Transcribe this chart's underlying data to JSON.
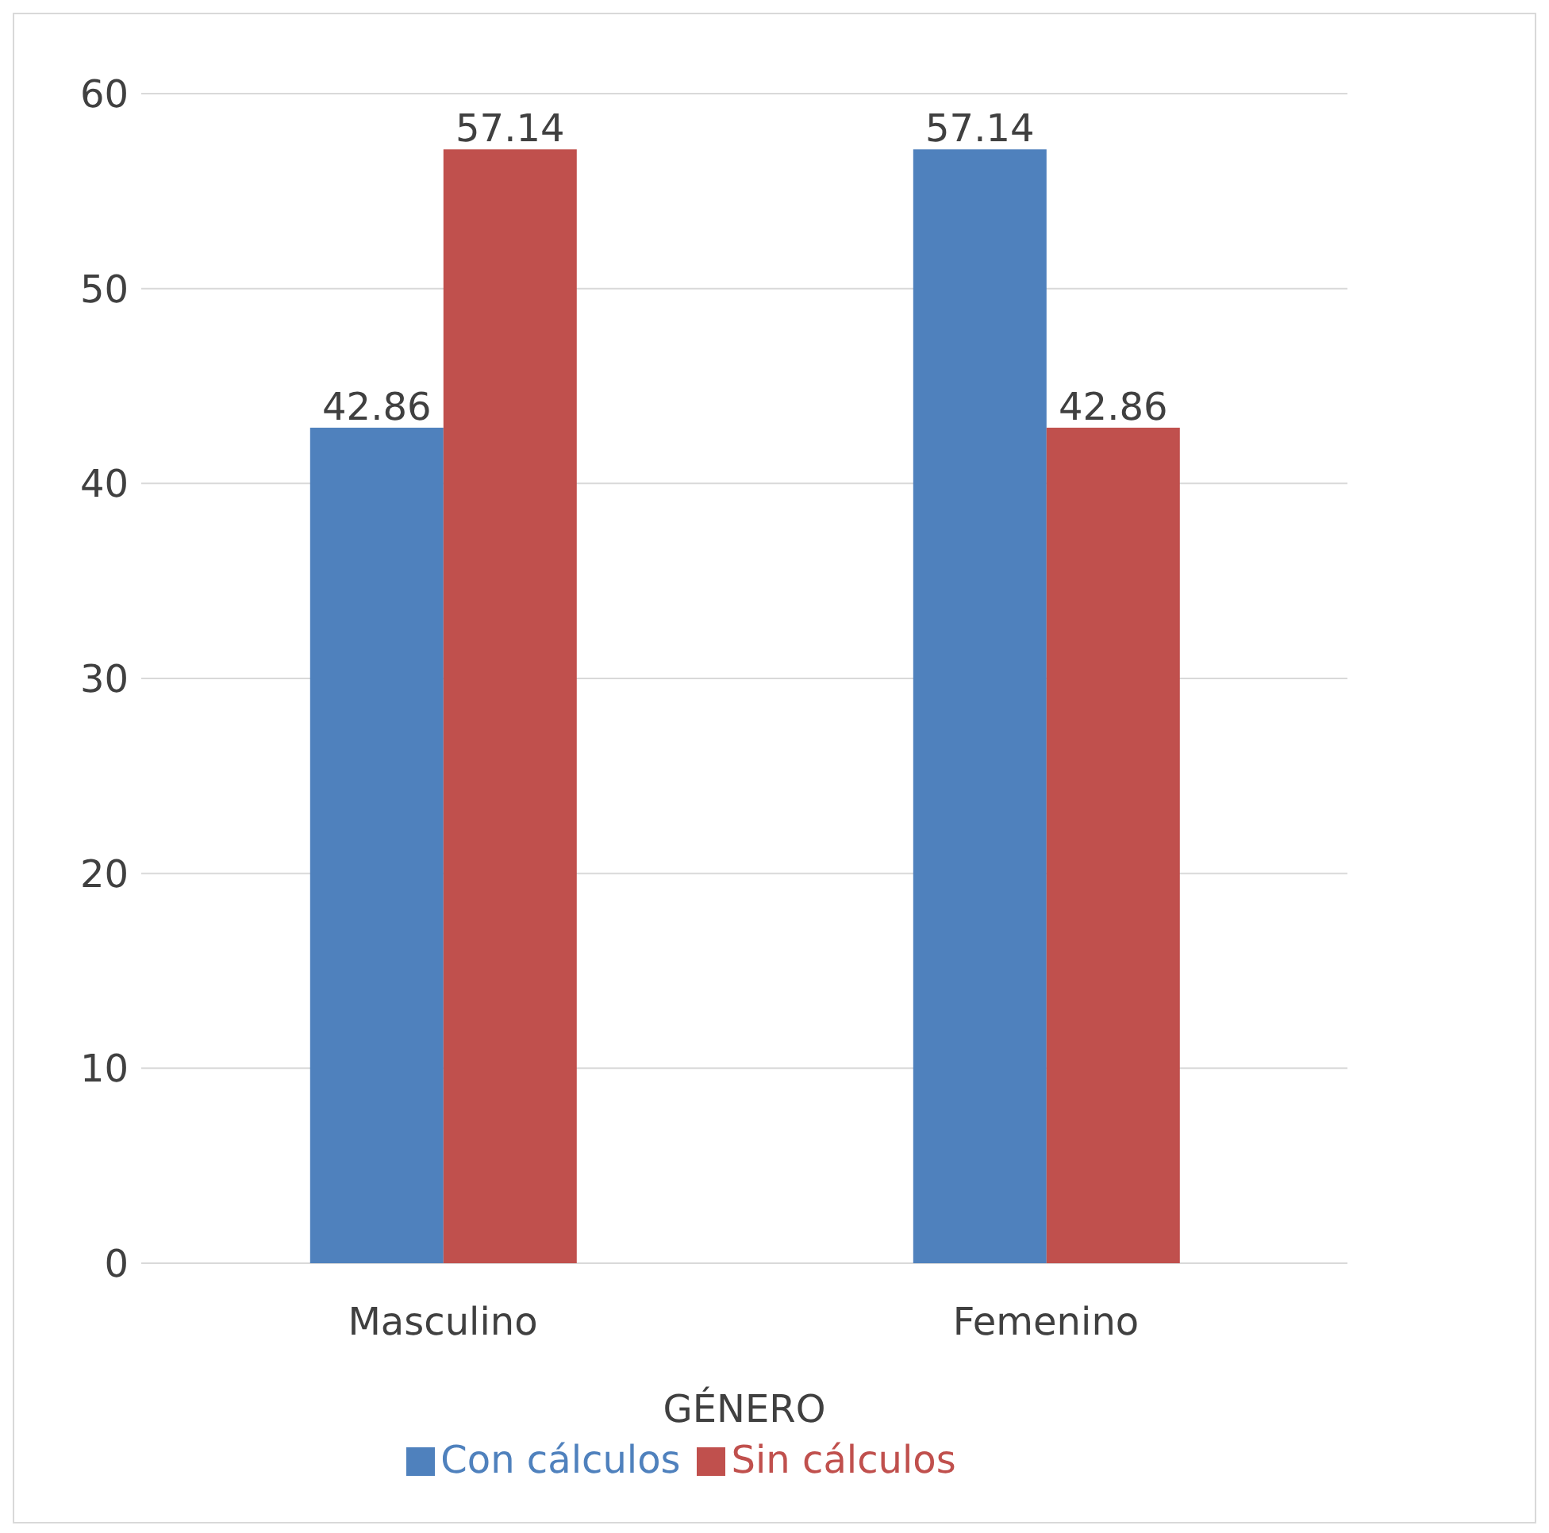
{
  "chart_data": {
    "type": "bar",
    "xlabel": "GÉNERO",
    "categories": [
      "Masculino",
      "Femenino"
    ],
    "series": [
      {
        "name": "Con cálculos",
        "color": "#4f81bd",
        "values": [
          42.86,
          57.14
        ]
      },
      {
        "name": "Sin cálculos",
        "color": "#c0504d",
        "values": [
          57.14,
          42.86
        ]
      }
    ],
    "ylim": [
      0,
      60
    ],
    "yticks": [
      0,
      10,
      20,
      30,
      40,
      50,
      60
    ],
    "grid": "y",
    "legend": "bottom",
    "data_labels": true
  }
}
